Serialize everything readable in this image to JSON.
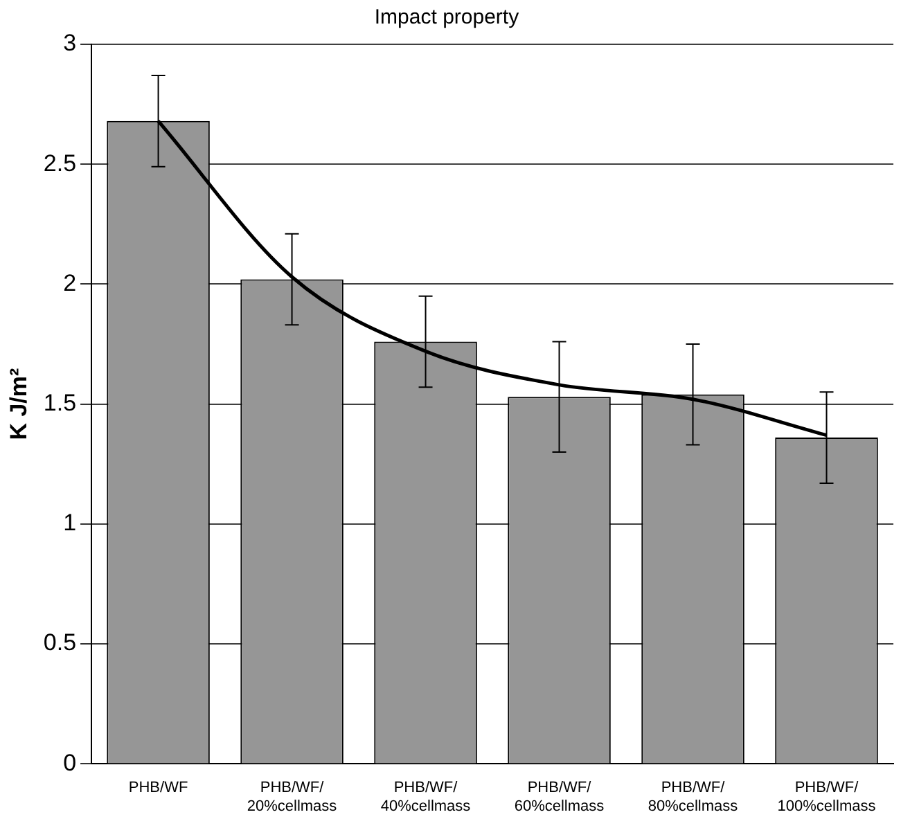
{
  "chart_data": {
    "type": "bar",
    "title": "Impact property",
    "ylabel": "K J/m²",
    "categories": [
      "PHB/WF",
      "PHB/WF/20%cellmass",
      "PHB/WF/40%cellmass",
      "PHB/WF/60%cellmass",
      "PHB/WF/80%cellmass",
      "PHB/WF/100%cellmass"
    ],
    "series": [
      {
        "color": "#969696",
        "values": [
          2.68,
          2.02,
          1.76,
          1.53,
          1.54,
          1.36
        ],
        "errors": [
          0.19,
          0.19,
          0.19,
          0.23,
          0.21,
          0.19
        ]
      },
      {
        "type": "line",
        "color": "#000000",
        "values": [
          2.68,
          2.03,
          1.72,
          1.58,
          1.52,
          1.37
        ]
      }
    ],
    "ylim": [
      0,
      3
    ],
    "yticks": [
      0,
      0.5,
      1,
      1.5,
      2,
      2.5,
      3
    ],
    "grid": "y",
    "legend": false,
    "marker": "none",
    "line_style": "solid"
  }
}
